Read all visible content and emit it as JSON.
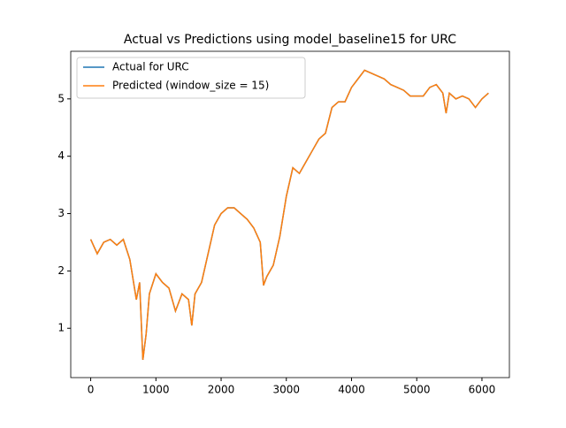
{
  "chart_data": {
    "type": "line",
    "title": "Actual vs Predictions using model_baseline15 for URC",
    "x": [
      0,
      100,
      200,
      300,
      400,
      500,
      600,
      700,
      750,
      800,
      850,
      900,
      1000,
      1100,
      1200,
      1300,
      1400,
      1500,
      1550,
      1600,
      1700,
      1800,
      1900,
      2000,
      2100,
      2200,
      2300,
      2400,
      2500,
      2600,
      2650,
      2700,
      2800,
      2900,
      3000,
      3100,
      3200,
      3300,
      3400,
      3500,
      3600,
      3700,
      3800,
      3900,
      4000,
      4100,
      4200,
      4300,
      4400,
      4500,
      4600,
      4700,
      4800,
      4900,
      5000,
      5100,
      5200,
      5300,
      5400,
      5450,
      5500,
      5600,
      5700,
      5800,
      5900,
      6000,
      6100
    ],
    "series": [
      {
        "name": "Actual for URC",
        "color": "#1f77b4",
        "values": [
          2.55,
          2.3,
          2.5,
          2.55,
          2.45,
          2.55,
          2.2,
          1.5,
          1.8,
          0.45,
          0.9,
          1.6,
          1.95,
          1.8,
          1.7,
          1.3,
          1.6,
          1.5,
          1.05,
          1.6,
          1.8,
          2.3,
          2.8,
          3.0,
          3.1,
          3.1,
          3.0,
          2.9,
          2.75,
          2.5,
          1.75,
          1.9,
          2.1,
          2.6,
          3.3,
          3.8,
          3.7,
          3.9,
          4.1,
          4.3,
          4.4,
          4.85,
          4.95,
          4.95,
          5.2,
          5.35,
          5.5,
          5.45,
          5.4,
          5.35,
          5.25,
          5.2,
          5.15,
          5.05,
          5.05,
          5.05,
          5.2,
          5.25,
          5.1,
          4.75,
          5.1,
          5.0,
          5.05,
          5.0,
          4.85,
          5.0,
          5.1
        ]
      },
      {
        "name": "Predicted (window_size = 15)",
        "color": "#ff7f0e",
        "values": [
          2.55,
          2.3,
          2.5,
          2.55,
          2.45,
          2.55,
          2.2,
          1.5,
          1.8,
          0.45,
          0.9,
          1.6,
          1.95,
          1.8,
          1.7,
          1.3,
          1.6,
          1.5,
          1.05,
          1.6,
          1.8,
          2.3,
          2.8,
          3.0,
          3.1,
          3.1,
          3.0,
          2.9,
          2.75,
          2.5,
          1.75,
          1.9,
          2.1,
          2.6,
          3.3,
          3.8,
          3.7,
          3.9,
          4.1,
          4.3,
          4.4,
          4.85,
          4.95,
          4.95,
          5.2,
          5.35,
          5.5,
          5.45,
          5.4,
          5.35,
          5.25,
          5.2,
          5.15,
          5.05,
          5.05,
          5.05,
          5.2,
          5.25,
          5.1,
          4.75,
          5.1,
          5.0,
          5.05,
          5.0,
          4.85,
          5.0,
          5.1
        ]
      }
    ],
    "xlim": [
      -306,
      6421
    ],
    "xticks": [
      0,
      1000,
      2000,
      3000,
      4000,
      5000,
      6000
    ],
    "ylim": [
      0.14,
      5.83
    ],
    "yticks": [
      1,
      2,
      3,
      4,
      5
    ],
    "legend": "upper left"
  }
}
